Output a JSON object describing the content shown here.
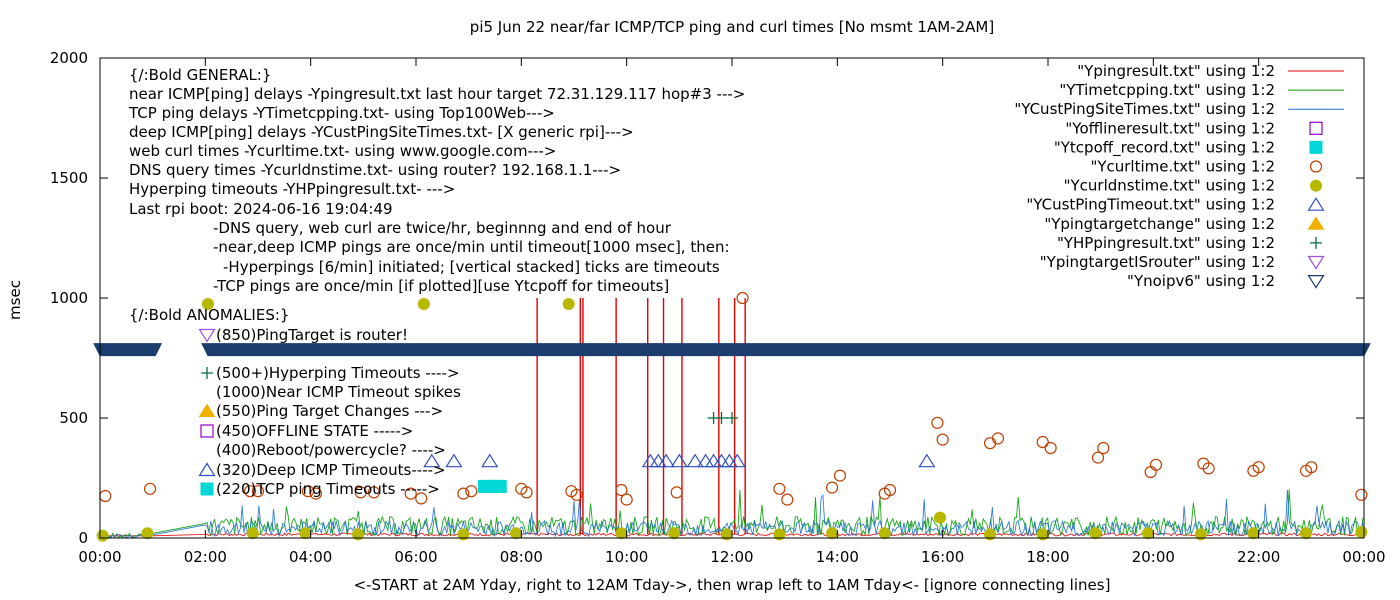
{
  "chart_data": {
    "type": "line",
    "title": "pi5 Jun 22  near/far ICMP/TCP ping and curl times [No msmt 1AM-2AM]",
    "xlabel": "<-START at 2AM Yday, right to 12AM Tday->, then wrap left to 1AM Tday<- [ignore connecting lines]",
    "ylabel": "msec",
    "xlim": [
      0,
      24
    ],
    "ylim": [
      0,
      2000
    ],
    "xticks": [
      {
        "v": 0,
        "label": "00:00"
      },
      {
        "v": 2,
        "label": "02:00"
      },
      {
        "v": 4,
        "label": "04:00"
      },
      {
        "v": 6,
        "label": "06:00"
      },
      {
        "v": 8,
        "label": "08:00"
      },
      {
        "v": 10,
        "label": "10:00"
      },
      {
        "v": 12,
        "label": "12:00"
      },
      {
        "v": 14,
        "label": "14:00"
      },
      {
        "v": 16,
        "label": "16:00"
      },
      {
        "v": 18,
        "label": "18:00"
      },
      {
        "v": 20,
        "label": "20:00"
      },
      {
        "v": 22,
        "label": "22:00"
      },
      {
        "v": 24,
        "label": "00:00"
      }
    ],
    "yticks": [
      {
        "v": 0,
        "label": "0"
      },
      {
        "v": 500,
        "label": "500"
      },
      {
        "v": 1000,
        "label": "1000"
      },
      {
        "v": 1500,
        "label": "1500"
      },
      {
        "v": 2000,
        "label": "2000"
      }
    ],
    "grid": false,
    "legend_placement": "top-right",
    "annotations": [
      "{/:Bold GENERAL:}",
      "near ICMP[ping] delays -Ypingresult.txt last hour target 72.31.129.117 hop#3 --->",
      "TCP ping delays -YTimetcpping.txt- using Top100Web--->",
      "deep ICMP[ping] delays -YCustPingSiteTimes.txt- [X generic rpi]--->",
      "web curl times -Ycurltime.txt- using www.google.com--->",
      "DNS query times -Ycurldnstime.txt- using router? 192.168.1.1--->",
      "Hyperping timeouts -YHPpingresult.txt- --->",
      "Last rpi boot: 2024-06-16 19:04:49",
      "-DNS query, web curl are twice/hr, beginnng and end of hour",
      "-near,deep ICMP pings are once/min until timeout[1000 msec], then:",
      "-Hyperpings [6/min] initiated; [vertical stacked] ticks are timeouts",
      "-TCP pings are once/min [if plotted][use Ytcpoff for timeouts]",
      "{/:Bold ANOMALIES:}",
      "(850)PingTarget is router!",
      "(500+)Hyperping Timeouts ---->",
      "(1000)Near ICMP Timeout spikes",
      "(550)Ping Target Changes --->",
      "(450)OFFLINE STATE ----->",
      "(400)Reboot/powercycle? ---->",
      "(320)Deep ICMP Timeouts---->",
      "(220)TCP ping Timeouts ----->"
    ],
    "series": [
      {
        "name": "\"Ypingresult.txt\" using 1:2",
        "color": "#e00000",
        "marker": "line",
        "spikes": [
          8.3,
          9.12,
          9.17,
          9.8,
          10.4,
          10.7,
          11.05,
          11.75,
          12.05,
          12.25
        ],
        "baseline": 15
      },
      {
        "name": "\"YTimetcpping.txt\" using 1:2",
        "color": "#009e00",
        "marker": "line",
        "baseline": 50
      },
      {
        "name": "\"YCustPingSiteTimes.txt\" using 1:2",
        "color": "#1f70d0",
        "marker": "line",
        "baseline": 40
      },
      {
        "name": "\"Yofflineresult.txt\" using 1:2",
        "color": "#9400d3",
        "marker": "open-square",
        "x": [],
        "y": []
      },
      {
        "name": "\"Ytcpoff_record.txt\" using 1:2",
        "color": "#00d8d8",
        "marker": "filled-square",
        "x": [
          7.3,
          7.4,
          7.5,
          7.6
        ],
        "y": [
          215,
          215,
          215,
          215
        ]
      },
      {
        "name": "\"Ycurltime.txt\" using 1:2",
        "color": "#c04000",
        "marker": "open-circle",
        "x": [
          0.1,
          0.95,
          2.85,
          3.0,
          3.95,
          4.1,
          4.95,
          5.2,
          5.9,
          6.1,
          6.9,
          7.05,
          8.0,
          8.1,
          8.95,
          9.05,
          9.9,
          10.0,
          10.95,
          12.2,
          12.9,
          13.05,
          13.9,
          14.05,
          14.9,
          15.0,
          15.9,
          16.0,
          16.9,
          17.05,
          17.9,
          18.05,
          18.95,
          19.05,
          19.95,
          20.05,
          20.95,
          21.05,
          21.9,
          22.0,
          22.9,
          23.0,
          23.95
        ],
        "y": [
          175,
          205,
          195,
          195,
          195,
          185,
          190,
          190,
          185,
          165,
          185,
          195,
          205,
          190,
          195,
          180,
          200,
          160,
          190,
          1000,
          205,
          160,
          210,
          260,
          185,
          200,
          480,
          410,
          395,
          415,
          400,
          375,
          335,
          375,
          275,
          305,
          310,
          290,
          280,
          295,
          280,
          295,
          180
        ]
      },
      {
        "name": "\"Ycurldnstime.txt\" using 1:2",
        "color": "#b8b800",
        "marker": "filled-circle",
        "x": [
          0.05,
          0.9,
          2.05,
          2.9,
          3.9,
          4.9,
          6.15,
          6.9,
          7.9,
          8.9,
          9.9,
          10.9,
          11.9,
          12.9,
          13.9,
          14.9,
          15.95,
          16.9,
          17.9,
          18.9,
          19.9,
          20.9,
          21.9,
          22.9,
          23.95
        ],
        "y": [
          10,
          20,
          975,
          20,
          20,
          15,
          975,
          15,
          20,
          975,
          20,
          20,
          15,
          15,
          20,
          20,
          85,
          15,
          15,
          20,
          20,
          15,
          20,
          20,
          25
        ]
      },
      {
        "name": "\"YCustPingTimeout.txt\" using 1:2",
        "color": "#3050c0",
        "marker": "open-triangle-up",
        "x": [
          6.3,
          6.72,
          7.4,
          10.45,
          10.6,
          10.75,
          11.0,
          11.3,
          11.5,
          11.65,
          11.8,
          11.95,
          12.1,
          15.7
        ],
        "y": [
          320,
          320,
          320,
          320,
          320,
          320,
          320,
          320,
          320,
          320,
          320,
          320,
          320,
          320
        ]
      },
      {
        "name": "\"Ypingtargetchange\" using 1:2",
        "color": "#f0b000",
        "marker": "filled-triangle-up",
        "x": [],
        "y": []
      },
      {
        "name": "\"YHPpingresult.txt\" using 1:2",
        "color": "#007040",
        "marker": "plus",
        "x": [
          11.65,
          11.8,
          12.0
        ],
        "y": [
          500,
          500,
          500
        ]
      },
      {
        "name": "\"YpingtargetISrouter\" using 1:2",
        "color": "#a050e0",
        "marker": "open-triangle-down",
        "x": [],
        "y": []
      },
      {
        "name": "\"Ynoipv6\" using 1:2",
        "color": "#1a3d6e",
        "marker": "open-triangle-down",
        "x": [],
        "y": [],
        "band_y": 785
      }
    ]
  }
}
